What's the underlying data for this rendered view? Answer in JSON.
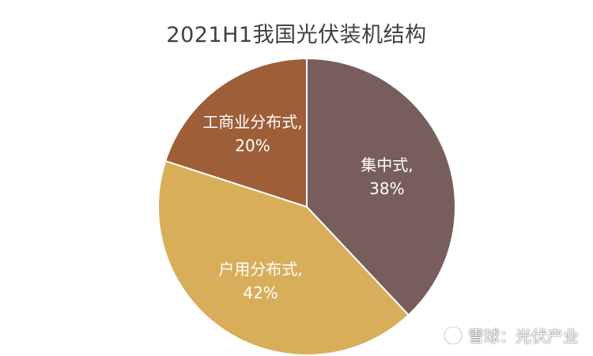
{
  "chart_data": {
    "type": "pie",
    "title": "2021H1我国光伏装机结构",
    "slices": [
      {
        "name": "集中式",
        "value": 38,
        "label": "集中式,",
        "value_label": "38%",
        "color": "#775D5B"
      },
      {
        "name": "户用分布式",
        "value": 42,
        "label": "户用分布式,",
        "value_label": "42%",
        "color": "#D9AE5A"
      },
      {
        "name": "工商业分布式",
        "value": 20,
        "label": "工商业分布式,",
        "value_label": "20%",
        "color": "#9E5E38"
      }
    ],
    "start_angle_deg": 0,
    "direction": "clockwise",
    "edge_color": "#ffffff"
  },
  "watermark": {
    "text": "雪球：光伏产业",
    "icon": "snowball-logo-icon"
  }
}
